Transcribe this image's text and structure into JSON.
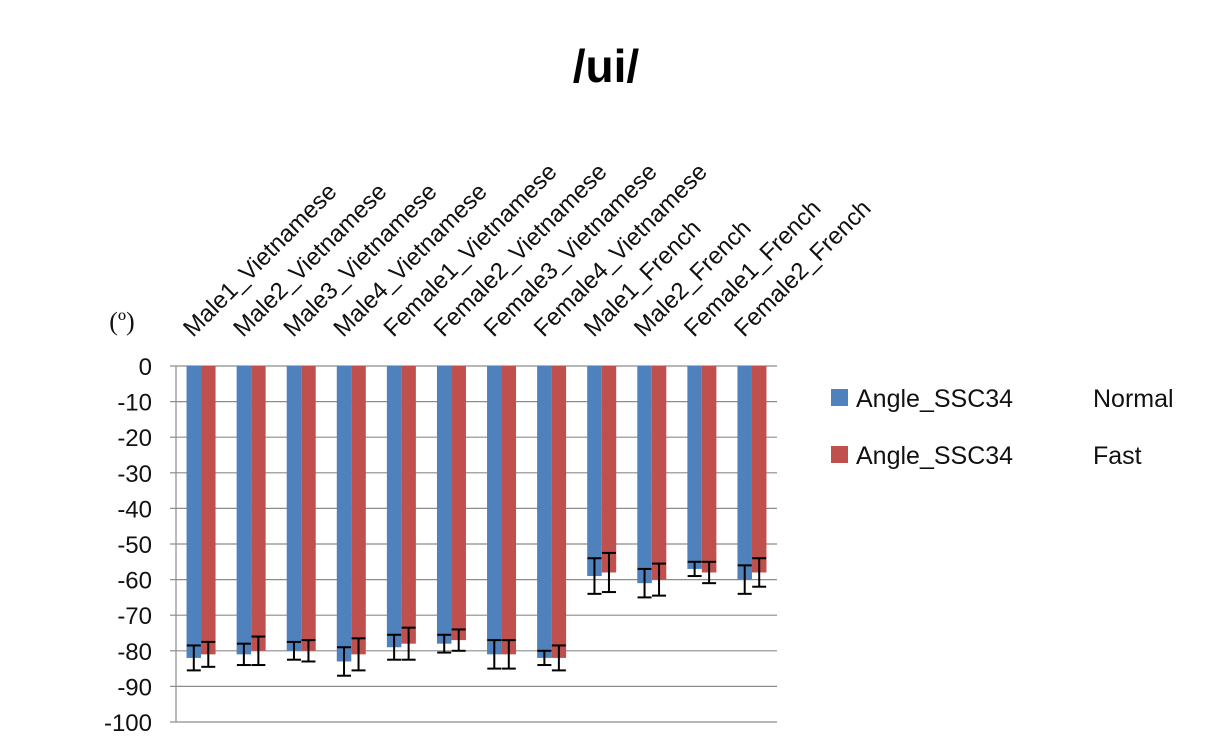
{
  "chart_data": {
    "type": "bar",
    "title": "/ui/",
    "unit_label": "(º)",
    "categories": [
      "Male1_Vietnamese",
      "Male2_Vietnamese",
      "Male3_Vietnamese",
      "Male4_Vietnamese",
      "Female1_Vietnamese",
      "Female2_Vietnamese",
      "Female3_Vietnamese",
      "Female4_Vietnamese",
      "Male1_French",
      "Male2_French",
      "Female1_French",
      "Female2_French"
    ],
    "series": [
      {
        "name": "Angle_SSC34",
        "condition": "Normal",
        "color": "#4F81BD",
        "values": [
          -82,
          -81,
          -80,
          -83,
          -79,
          -78,
          -81,
          -82,
          -59,
          -61,
          -57,
          -60
        ],
        "error": [
          3.5,
          3,
          2.5,
          4,
          3.5,
          2.5,
          4,
          2,
          5,
          4,
          2,
          4
        ]
      },
      {
        "name": "Angle_SSC34",
        "condition": "Fast",
        "color": "#C0504D",
        "values": [
          -81,
          -80,
          -80,
          -81,
          -78,
          -77,
          -81,
          -82,
          -58,
          -60,
          -58,
          -58
        ],
        "error": [
          3.5,
          4,
          3,
          4.5,
          4.5,
          3,
          4,
          3.5,
          5.5,
          4.5,
          3,
          4
        ]
      }
    ],
    "yticks": [
      "0",
      "-10",
      "-20",
      "-30",
      "-40",
      "-50",
      "-60",
      "-70",
      "-80",
      "-90",
      "-100"
    ],
    "ylim": [
      -100,
      0
    ],
    "grid": true,
    "legend_position": "right"
  }
}
